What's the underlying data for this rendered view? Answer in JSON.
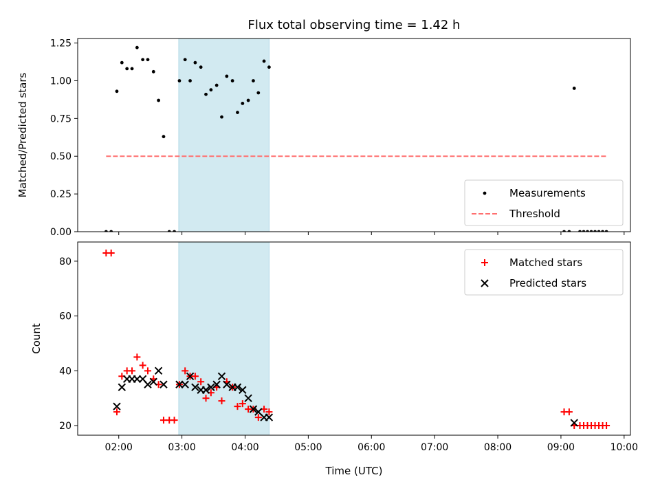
{
  "chart_data": {
    "type": "scatter",
    "title": "Flux total observing time = 1.42 h",
    "xlabel": "Time (UTC)",
    "x_ticks": [
      "02:00",
      "03:00",
      "04:00",
      "05:00",
      "06:00",
      "07:00",
      "08:00",
      "09:00",
      "10:00"
    ],
    "xlim_hours": [
      1.35,
      10.1
    ],
    "highlight_span_hours": [
      2.95,
      4.38
    ],
    "highlight_color": "#add8e6",
    "panels": [
      {
        "id": "ratio",
        "ylabel": "Matched/Predicted stars",
        "ylim": [
          0,
          1.28
        ],
        "y_ticks": [
          "0.00",
          "0.25",
          "0.50",
          "0.75",
          "1.00",
          "1.25"
        ],
        "legend_position": "lower-right",
        "series": [
          {
            "name": "Measurements",
            "marker": "dot",
            "color": "#000000",
            "points": [
              [
                1.8,
                0
              ],
              [
                1.88,
                0
              ],
              [
                1.97,
                0.93
              ],
              [
                2.05,
                1.12
              ],
              [
                2.13,
                1.08
              ],
              [
                2.21,
                1.08
              ],
              [
                2.29,
                1.22
              ],
              [
                2.38,
                1.14
              ],
              [
                2.46,
                1.14
              ],
              [
                2.55,
                1.06
              ],
              [
                2.63,
                0.87
              ],
              [
                2.71,
                0.63
              ],
              [
                2.8,
                0
              ],
              [
                2.88,
                0
              ],
              [
                2.96,
                1.0
              ],
              [
                3.05,
                1.14
              ],
              [
                3.13,
                1.0
              ],
              [
                3.21,
                1.12
              ],
              [
                3.3,
                1.09
              ],
              [
                3.38,
                0.91
              ],
              [
                3.46,
                0.94
              ],
              [
                3.55,
                0.97
              ],
              [
                3.63,
                0.76
              ],
              [
                3.71,
                1.03
              ],
              [
                3.8,
                1.0
              ],
              [
                3.88,
                0.79
              ],
              [
                3.96,
                0.85
              ],
              [
                4.05,
                0.87
              ],
              [
                4.13,
                1.0
              ],
              [
                4.21,
                0.92
              ],
              [
                4.3,
                1.13
              ],
              [
                4.38,
                1.09
              ],
              [
                9.05,
                0
              ],
              [
                9.13,
                0
              ],
              [
                9.21,
                0.95
              ],
              [
                9.3,
                0
              ],
              [
                9.36,
                0
              ],
              [
                9.42,
                0
              ],
              [
                9.48,
                0
              ],
              [
                9.54,
                0
              ],
              [
                9.6,
                0
              ],
              [
                9.66,
                0
              ],
              [
                9.72,
                0
              ]
            ]
          },
          {
            "name": "Threshold",
            "marker": "dashed-line",
            "color": "#ff6f6f",
            "points": [
              [
                1.8,
                0.5
              ],
              [
                9.72,
                0.5
              ]
            ]
          }
        ]
      },
      {
        "id": "counts",
        "ylabel": "Count",
        "ylim": [
          16.5,
          87
        ],
        "y_ticks": [
          "20",
          "40",
          "60",
          "80"
        ],
        "legend_position": "upper-right",
        "series": [
          {
            "name": "Matched stars",
            "marker": "plus",
            "color": "#ff0000",
            "points": [
              [
                1.8,
                83
              ],
              [
                1.88,
                83
              ],
              [
                1.97,
                25
              ],
              [
                2.05,
                38
              ],
              [
                2.13,
                40
              ],
              [
                2.21,
                40
              ],
              [
                2.29,
                45
              ],
              [
                2.38,
                42
              ],
              [
                2.46,
                40
              ],
              [
                2.55,
                37
              ],
              [
                2.63,
                35
              ],
              [
                2.71,
                22
              ],
              [
                2.8,
                22
              ],
              [
                2.88,
                22
              ],
              [
                2.96,
                35
              ],
              [
                3.05,
                40
              ],
              [
                3.13,
                38
              ],
              [
                3.21,
                38
              ],
              [
                3.3,
                36
              ],
              [
                3.38,
                30
              ],
              [
                3.46,
                32
              ],
              [
                3.55,
                34
              ],
              [
                3.63,
                29
              ],
              [
                3.71,
                36
              ],
              [
                3.8,
                34
              ],
              [
                3.88,
                27
              ],
              [
                3.96,
                28
              ],
              [
                4.05,
                26
              ],
              [
                4.13,
                26
              ],
              [
                4.21,
                23
              ],
              [
                4.3,
                26
              ],
              [
                4.38,
                25
              ],
              [
                9.05,
                25
              ],
              [
                9.13,
                25
              ],
              [
                9.21,
                20
              ],
              [
                9.3,
                20
              ],
              [
                9.36,
                20
              ],
              [
                9.42,
                20
              ],
              [
                9.48,
                20
              ],
              [
                9.54,
                20
              ],
              [
                9.6,
                20
              ],
              [
                9.66,
                20
              ],
              [
                9.72,
                20
              ]
            ]
          },
          {
            "name": "Predicted stars",
            "marker": "x",
            "color": "#000000",
            "points": [
              [
                1.97,
                27
              ],
              [
                2.05,
                34
              ],
              [
                2.13,
                37
              ],
              [
                2.21,
                37
              ],
              [
                2.29,
                37
              ],
              [
                2.38,
                37
              ],
              [
                2.46,
                35
              ],
              [
                2.55,
                36
              ],
              [
                2.63,
                40
              ],
              [
                2.71,
                35
              ],
              [
                2.96,
                35
              ],
              [
                3.05,
                35
              ],
              [
                3.13,
                38
              ],
              [
                3.21,
                34
              ],
              [
                3.3,
                33
              ],
              [
                3.38,
                33
              ],
              [
                3.46,
                34
              ],
              [
                3.55,
                35
              ],
              [
                3.63,
                38
              ],
              [
                3.71,
                35
              ],
              [
                3.8,
                34
              ],
              [
                3.88,
                34
              ],
              [
                3.96,
                33
              ],
              [
                4.05,
                30
              ],
              [
                4.13,
                26
              ],
              [
                4.21,
                25
              ],
              [
                4.3,
                23
              ],
              [
                4.38,
                23
              ],
              [
                9.21,
                21
              ]
            ]
          }
        ]
      }
    ]
  }
}
